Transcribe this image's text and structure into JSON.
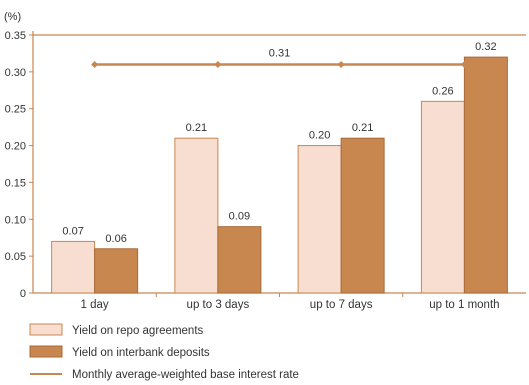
{
  "chart_data": {
    "type": "bar",
    "unit_label": "(%)",
    "categories": [
      "1 day",
      "up to 3 days",
      "up to  7 days",
      "up to 1 month"
    ],
    "series": [
      {
        "name": "Yield on repo agreements",
        "values": [
          0.07,
          0.21,
          0.2,
          0.26
        ],
        "labels": [
          "0.07",
          "0.21",
          "0.20",
          "0.26"
        ],
        "color": "#f8ded0",
        "stroke": "#c8874f"
      },
      {
        "name": "Yield on interbank deposits",
        "values": [
          0.06,
          0.09,
          0.21,
          0.32
        ],
        "labels": [
          "0.06",
          "0.09",
          "0.21",
          "0.32"
        ],
        "color": "#c8874f",
        "stroke": "#a86a38"
      }
    ],
    "line": {
      "name": "Monthly average-weighted base interest rate",
      "value": 0.31,
      "label": "0.31",
      "color": "#c8874f"
    },
    "ylim": [
      0,
      0.35
    ],
    "yticks": [
      "0",
      "0.05",
      "0.10",
      "0.15",
      "0.20",
      "0.25",
      "0.30",
      "0.35"
    ],
    "ytick_values": [
      0,
      0.05,
      0.1,
      0.15,
      0.2,
      0.25,
      0.3,
      0.35
    ],
    "grid": false,
    "legend_position": "bottom-left"
  }
}
